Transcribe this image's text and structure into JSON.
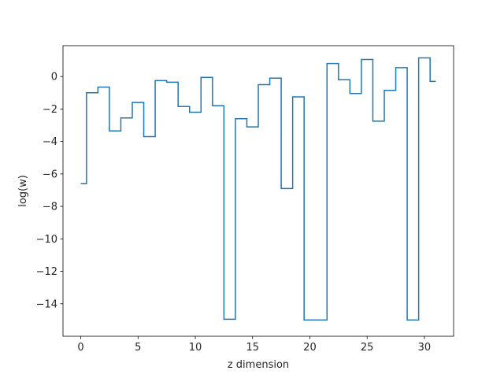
{
  "chart_data": {
    "type": "line",
    "drawstyle": "steps-mid",
    "title": "",
    "xlabel": "z dimension",
    "ylabel": "log(w)",
    "xlim": [
      -1.55,
      32.55
    ],
    "ylim": [
      -16.0,
      1.9
    ],
    "xticks": [
      0,
      5,
      10,
      15,
      20,
      25,
      30
    ],
    "yticks": [
      -14,
      -12,
      -10,
      -8,
      -6,
      -4,
      -2,
      0
    ],
    "xtick_labels": [
      "0",
      "5",
      "10",
      "15",
      "20",
      "25",
      "30"
    ],
    "ytick_labels": [
      "−14",
      "−12",
      "−10",
      "−8",
      "−6",
      "−4",
      "−2",
      "0"
    ],
    "grid": false,
    "series": [
      {
        "color": "#1f77b4",
        "x": [
          0,
          1,
          2,
          3,
          4,
          5,
          6,
          7,
          8,
          9,
          10,
          11,
          12,
          13,
          14,
          15,
          16,
          17,
          18,
          19,
          20,
          21,
          22,
          23,
          24,
          25,
          26,
          27,
          28,
          29,
          30,
          31
        ],
        "y": [
          -6.6,
          -1.0,
          -0.65,
          -3.35,
          -2.55,
          -1.6,
          -3.7,
          -0.25,
          -0.35,
          -1.85,
          -2.2,
          -0.05,
          -1.8,
          -14.95,
          -2.6,
          -3.1,
          -0.5,
          -0.1,
          -6.9,
          -1.25,
          -15.0,
          -15.0,
          0.8,
          -0.2,
          -1.05,
          1.05,
          -2.75,
          -0.85,
          0.55,
          -15.0,
          1.15,
          -0.3
        ]
      }
    ]
  }
}
